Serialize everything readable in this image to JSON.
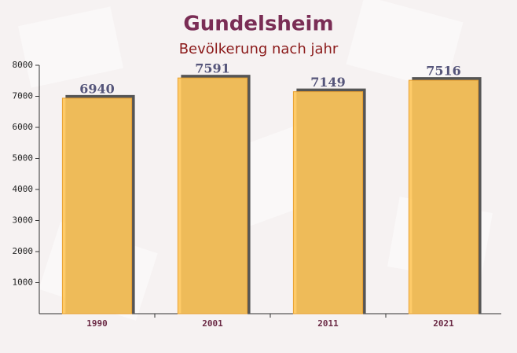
{
  "chart_data": {
    "type": "bar",
    "title": "Gundelsheim",
    "subtitle": "Bevölkerung nach jahr",
    "categories": [
      "1990",
      "2001",
      "2011",
      "2021"
    ],
    "values": [
      6940,
      7591,
      7149,
      7516
    ],
    "color": "#ffc75a",
    "ylim": [
      0,
      8000
    ],
    "yticks": [
      1000,
      2000,
      3000,
      4000,
      5000,
      6000,
      7000,
      8000
    ],
    "grid": false
  }
}
